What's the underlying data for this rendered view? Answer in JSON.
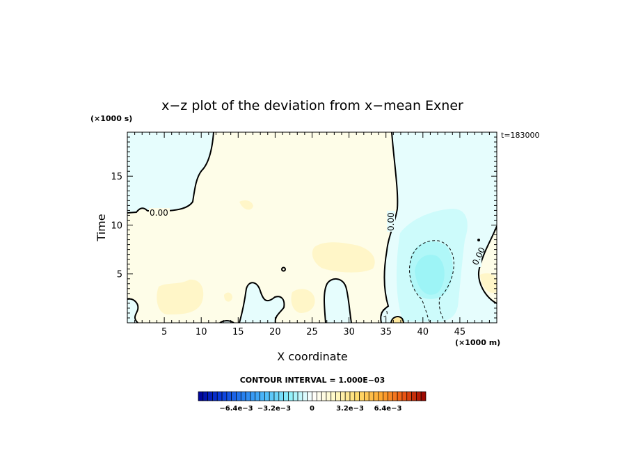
{
  "chart_data": {
    "type": "heatmap",
    "title": "x−z plot of the deviation from x−mean Exner",
    "xlabel": "X coordinate",
    "ylabel": "Time",
    "x_unit": "(×1000 m)",
    "y_unit": "(×1000 s)",
    "time_label": "t=183000",
    "xlim": [
      0,
      50
    ],
    "ylim": [
      0,
      19.5
    ],
    "x_ticks": [
      5,
      10,
      15,
      20,
      25,
      30,
      35,
      40,
      45
    ],
    "y_ticks": [
      5,
      10,
      15
    ],
    "contour_interval_text": "CONTOUR INTERVAL = 1.000E−03",
    "contour_labels": [
      "0.00",
      "0.00",
      "0.00"
    ],
    "colorbar": {
      "min": -0.0096,
      "max": 0.0096,
      "tick_labels": [
        "−6.4e−3",
        "−3.2e−3",
        "0",
        "3.2e−3",
        "6.4e−3"
      ],
      "tick_values": [
        -0.0064,
        -0.0032,
        0,
        0.0032,
        0.0064
      ]
    },
    "regions": {
      "negative_max_area": {
        "x": 41,
        "y": 5.0,
        "value": -0.0024
      },
      "positive_weak_area": {
        "x": 20,
        "y": 9,
        "value": 0.0004
      }
    }
  }
}
